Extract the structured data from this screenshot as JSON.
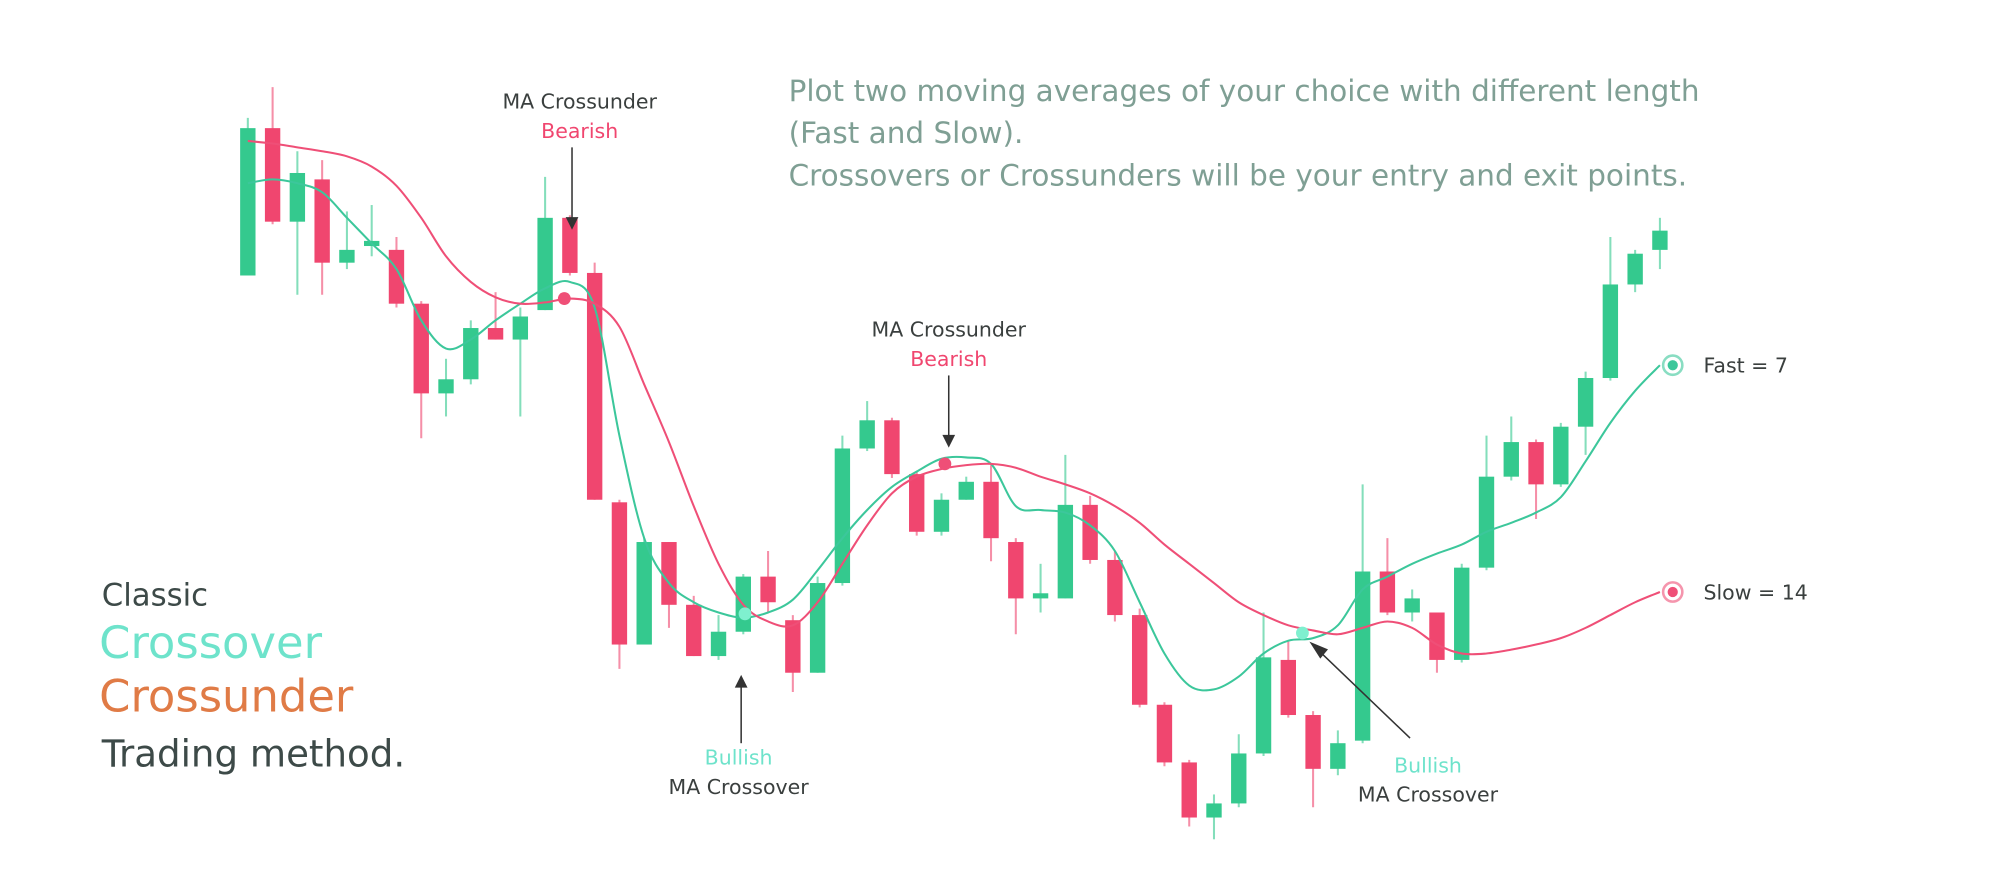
{
  "chart_data": {
    "type": "candlestick",
    "up_color": "#34c98e",
    "down_color": "#f0466f",
    "open": [
      485,
      600,
      527,
      560,
      495,
      508,
      505,
      463,
      393,
      404,
      444,
      435,
      458,
      530,
      487,
      308,
      197,
      277,
      228,
      188,
      207,
      250,
      216,
      175,
      245,
      350,
      372,
      330,
      285,
      310,
      324,
      277,
      233,
      233,
      306,
      263,
      220,
      150,
      105,
      62,
      73,
      112,
      185,
      142,
      100,
      122,
      254,
      222,
      222,
      185,
      257,
      328,
      355,
      322,
      367,
      405,
      478,
      505
    ],
    "close": [
      600,
      527,
      565,
      495,
      505,
      512,
      463,
      393,
      404,
      444,
      435,
      453,
      530,
      487,
      310,
      197,
      277,
      228,
      188,
      207,
      250,
      230,
      175,
      245,
      350,
      372,
      330,
      285,
      310,
      324,
      280,
      233,
      237,
      306,
      263,
      220,
      150,
      105,
      62,
      73,
      112,
      187,
      142,
      100,
      120,
      254,
      222,
      233,
      185,
      257,
      328,
      355,
      322,
      367,
      405,
      478,
      502,
      520
    ],
    "high": [
      608,
      632,
      582,
      575,
      535,
      540,
      515,
      465,
      420,
      450,
      472,
      460,
      562,
      532,
      495,
      310,
      280,
      277,
      235,
      220,
      252,
      270,
      220,
      250,
      360,
      387,
      374,
      332,
      315,
      328,
      337,
      280,
      260,
      345,
      313,
      270,
      225,
      152,
      107,
      80,
      127,
      222,
      200,
      145,
      130,
      322,
      280,
      240,
      222,
      260,
      360,
      375,
      357,
      370,
      410,
      515,
      505,
      530
    ],
    "low": [
      485,
      525,
      470,
      470,
      490,
      500,
      460,
      358,
      375,
      400,
      435,
      375,
      458,
      485,
      310,
      178,
      197,
      210,
      188,
      185,
      205,
      222,
      160,
      175,
      243,
      348,
      327,
      282,
      282,
      310,
      262,
      205,
      222,
      233,
      260,
      215,
      148,
      102,
      55,
      45,
      70,
      110,
      140,
      70,
      95,
      120,
      220,
      215,
      175,
      183,
      255,
      325,
      295,
      320,
      345,
      403,
      472,
      490
    ],
    "series": [
      {
        "name": "Fast = 7",
        "color": "#3cc79b",
        "values": [
          557,
          560,
          557,
          550,
          530,
          510,
          490,
          450,
          428,
          435,
          450,
          463,
          475,
          480,
          460,
          360,
          280,
          245,
          230,
          222,
          218,
          222,
          232,
          255,
          280,
          302,
          320,
          332,
          342,
          343,
          338,
          305,
          302,
          300,
          290,
          270,
          230,
          190,
          165,
          162,
          172,
          190,
          200,
          202,
          212,
          240,
          250,
          260,
          268,
          275,
          285,
          292,
          300,
          312,
          340,
          370,
          395,
          415
        ]
      },
      {
        "name": "Slow = 14",
        "color": "#ef4f77",
        "values": [
          590,
          588,
          585,
          582,
          578,
          570,
          555,
          530,
          500,
          480,
          468,
          463,
          464,
          467,
          463,
          445,
          400,
          355,
          305,
          260,
          228,
          215,
          212,
          230,
          260,
          290,
          315,
          328,
          334,
          337,
          338,
          335,
          328,
          322,
          315,
          305,
          292,
          275,
          260,
          245,
          230,
          220,
          212,
          208,
          205,
          210,
          215,
          210,
          197,
          190,
          190,
          193,
          197,
          202,
          210,
          220,
          230,
          238
        ]
      }
    ],
    "annotations": [
      {
        "title": "MA Crossunder",
        "signal": "Bearish"
      },
      {
        "title": "MA Crossunder",
        "signal": "Bearish"
      },
      {
        "title": "MA Crossover",
        "signal": "Bullish"
      },
      {
        "title": "MA Crossover",
        "signal": "Bullish"
      }
    ]
  },
  "description": [
    "Plot two moving averages of your choice with different length",
    "(Fast and Slow).",
    "Crossovers or Crossunders will be your entry and exit points."
  ],
  "headline": [
    "Classic",
    "Crossover",
    "Crossunder",
    "Trading method."
  ]
}
